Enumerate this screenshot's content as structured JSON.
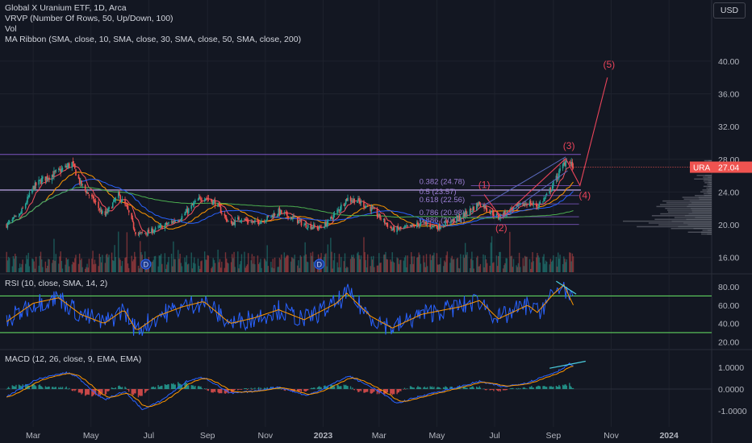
{
  "header": {
    "legend_lines": [
      "Global X Uranium ETF, 1D, Arca",
      "VRVP (Number Of Rows, 50, Up/Down, 100)",
      "Vol",
      "MA Ribbon (SMA, close, 10, SMA, close, 30, SMA, close, 50, SMA, close, 200)"
    ],
    "currency": "USD"
  },
  "rsi_panel": {
    "legend": "RSI (10, close, SMA, 14, 2)"
  },
  "macd_panel": {
    "legend": "MACD (12, 26, close, 9, EMA, EMA)"
  },
  "colors": {
    "background": "#131722",
    "grid": "#1e222d",
    "up": "#26a69a",
    "down": "#ef5350",
    "ma_fast": "#f7525f",
    "ma_30": "#ff9800",
    "ma_50": "#2962ff",
    "ma_200": "#4caf50",
    "rsi": "#2962ff",
    "rsi_signal": "#ff9800",
    "rsi_bands": "#5fd35f",
    "elliott": "#e8445a",
    "fib": "#7e57c2",
    "vrvp": "#787b86",
    "trend_line": "#b2b5be"
  },
  "icons": [
    "dividend-marker-icon"
  ],
  "chart_data": [
    {
      "type": "candlestick",
      "title": "Global X Uranium ETF, 1D, Arca",
      "symbol": "URA",
      "last_price": "27.04",
      "y_ticks": [
        "40.00",
        "36.00",
        "32.00",
        "28.00",
        "24.00",
        "20.00",
        "16.00"
      ],
      "ylim": [
        14.2,
        45.5
      ],
      "x_ticks": [
        "Mar",
        "May",
        "Jul",
        "Sep",
        "Nov",
        "2023",
        "Mar",
        "May",
        "Jul",
        "Sep",
        "Nov",
        "2024"
      ],
      "price_anchors": [
        [
          "2022-02-01",
          20.0
        ],
        [
          "2022-02-15",
          21.2
        ],
        [
          "2022-03-01",
          24.5
        ],
        [
          "2022-03-10",
          25.5
        ],
        [
          "2022-03-28",
          26.5
        ],
        [
          "2022-04-11",
          27.5
        ],
        [
          "2022-04-20",
          25.0
        ],
        [
          "2022-05-05",
          22.8
        ],
        [
          "2022-05-15",
          21.0
        ],
        [
          "2022-05-30",
          23.6
        ],
        [
          "2022-06-08",
          22.0
        ],
        [
          "2022-06-18",
          18.8
        ],
        [
          "2022-06-28",
          19.0
        ],
        [
          "2022-07-10",
          19.5
        ],
        [
          "2022-07-25",
          20.3
        ],
        [
          "2022-08-05",
          21.0
        ],
        [
          "2022-08-20",
          22.8
        ],
        [
          "2022-08-28",
          23.5
        ],
        [
          "2022-09-10",
          22.6
        ],
        [
          "2022-09-25",
          20.0
        ],
        [
          "2022-10-05",
          20.8
        ],
        [
          "2022-10-20",
          20.2
        ],
        [
          "2022-11-03",
          20.8
        ],
        [
          "2022-11-15",
          21.6
        ],
        [
          "2022-12-01",
          20.8
        ],
        [
          "2022-12-12",
          20.0
        ],
        [
          "2022-12-28",
          19.6
        ],
        [
          "2023-01-05",
          20.2
        ],
        [
          "2023-01-15",
          21.5
        ],
        [
          "2023-01-26",
          23.2
        ],
        [
          "2023-02-05",
          23.0
        ],
        [
          "2023-02-20",
          22.0
        ],
        [
          "2023-03-01",
          21.0
        ],
        [
          "2023-03-15",
          19.4
        ],
        [
          "2023-03-30",
          19.6
        ],
        [
          "2023-04-15",
          20.2
        ],
        [
          "2023-05-01",
          19.7
        ],
        [
          "2023-05-15",
          20.4
        ],
        [
          "2023-05-25",
          20.9
        ],
        [
          "2023-06-05",
          21.7
        ],
        [
          "2023-06-15",
          22.7
        ],
        [
          "2023-06-25",
          21.8
        ],
        [
          "2023-07-05",
          20.9
        ],
        [
          "2023-07-20",
          22.0
        ],
        [
          "2023-08-05",
          22.7
        ],
        [
          "2023-08-15",
          22.3
        ],
        [
          "2023-08-25",
          23.5
        ],
        [
          "2023-09-01",
          25.0
        ],
        [
          "2023-09-10",
          27.0
        ],
        [
          "2023-09-15",
          28.1
        ],
        [
          "2023-09-22",
          27.04
        ]
      ],
      "annotations": {
        "elliott_labels": [
          "(1)",
          "(2)",
          "(3)",
          "(4)",
          "(5)"
        ],
        "elliott_points": [
          [
            "2023-06-20",
            23.7
          ],
          [
            "2023-07-08",
            20.8
          ],
          [
            "2023-09-14",
            28.1
          ],
          [
            "2023-09-29",
            24.8
          ],
          [
            "2023-10-28",
            38.0
          ]
        ],
        "fib_levels": [
          {
            "ratio": "0.382 (24.78)",
            "value": 24.78
          },
          {
            "ratio": "0.5 (23.57)",
            "value": 23.57
          },
          {
            "ratio": "0.618 (22.56)",
            "value": 22.56
          },
          {
            "ratio": "0.786 (20.98)",
            "value": 20.98
          },
          {
            "ratio": "0.886 (20.04)",
            "value": 20.04
          }
        ],
        "horizontal_lines": [
          28.6,
          24.25
        ],
        "dividend_dates": [
          "2022-06-28",
          "2022-12-28"
        ]
      }
    },
    {
      "type": "line",
      "title": "RSI (10, close, SMA, 14, 2)",
      "y_ticks": [
        "80.00",
        "60.00",
        "40.00",
        "20.00"
      ],
      "ylim": [
        13.3,
        92.3
      ],
      "bands": [
        70,
        30
      ],
      "rsi_anchors": [
        [
          "2022-02-01",
          42
        ],
        [
          "2022-03-01",
          62
        ],
        [
          "2022-03-28",
          68
        ],
        [
          "2022-04-20",
          50
        ],
        [
          "2022-05-15",
          40
        ],
        [
          "2022-06-05",
          55
        ],
        [
          "2022-06-18",
          32
        ],
        [
          "2022-07-10",
          48
        ],
        [
          "2022-08-05",
          58
        ],
        [
          "2022-08-28",
          64
        ],
        [
          "2022-09-25",
          40
        ],
        [
          "2022-10-20",
          46
        ],
        [
          "2022-11-15",
          55
        ],
        [
          "2022-12-12",
          44
        ],
        [
          "2023-01-15",
          62
        ],
        [
          "2023-01-26",
          73
        ],
        [
          "2023-02-20",
          48
        ],
        [
          "2023-03-15",
          35
        ],
        [
          "2023-04-15",
          50
        ],
        [
          "2023-05-25",
          58
        ],
        [
          "2023-06-15",
          65
        ],
        [
          "2023-07-05",
          45
        ],
        [
          "2023-08-05",
          60
        ],
        [
          "2023-08-15",
          52
        ],
        [
          "2023-09-01",
          72
        ],
        [
          "2023-09-12",
          82
        ],
        [
          "2023-09-22",
          60
        ]
      ]
    },
    {
      "type": "histogram",
      "title": "MACD (12, 26, close, 9, EMA, EMA)",
      "y_ticks": [
        "1.0000",
        "0.0000",
        "-1.0000"
      ],
      "ylim": [
        -1.58,
        1.73
      ],
      "macd_anchors": [
        [
          "2022-02-01",
          -0.35
        ],
        [
          "2022-03-05",
          0.45
        ],
        [
          "2022-04-05",
          0.75
        ],
        [
          "2022-04-15",
          0.6
        ],
        [
          "2022-05-15",
          -0.5
        ],
        [
          "2022-06-05",
          -0.1
        ],
        [
          "2022-06-25",
          -0.95
        ],
        [
          "2022-07-15",
          -0.5
        ],
        [
          "2022-08-10",
          0.35
        ],
        [
          "2022-08-28",
          0.55
        ],
        [
          "2022-09-25",
          -0.2
        ],
        [
          "2022-10-20",
          -0.1
        ],
        [
          "2022-11-15",
          0.1
        ],
        [
          "2022-12-15",
          -0.3
        ],
        [
          "2023-01-05",
          0.1
        ],
        [
          "2023-01-28",
          0.6
        ],
        [
          "2023-02-25",
          0.0
        ],
        [
          "2023-03-20",
          -0.65
        ],
        [
          "2023-04-15",
          -0.3
        ],
        [
          "2023-05-15",
          0.0
        ],
        [
          "2023-06-15",
          0.35
        ],
        [
          "2023-07-10",
          0.1
        ],
        [
          "2023-08-05",
          0.3
        ],
        [
          "2023-08-20",
          0.55
        ],
        [
          "2023-09-05",
          0.8
        ],
        [
          "2023-09-18",
          1.15
        ],
        [
          "2023-09-22",
          1.05
        ]
      ]
    }
  ]
}
